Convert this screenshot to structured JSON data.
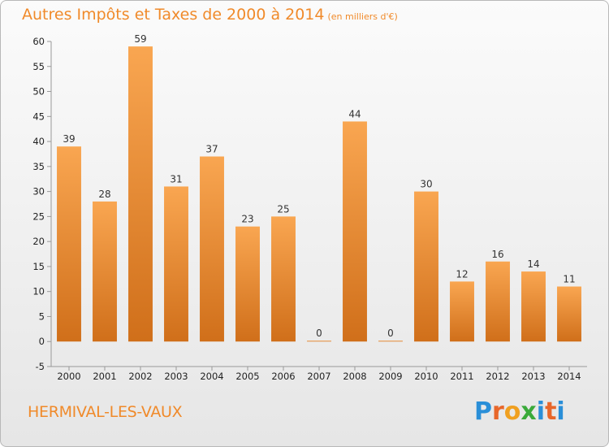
{
  "chart_title": "Autres Impôts et Taxes de 2000 à 2014",
  "chart_subtitle": "(en milliers d'€)",
  "commune": "HERMIVAL-LES-VAUX",
  "logo": {
    "text": "Proxiti",
    "colors": [
      "#2a8fd8",
      "#e8672a",
      "#f0a020",
      "#3aaa3a",
      "#2a8fd8",
      "#e8672a",
      "#2a8fd8"
    ]
  },
  "colors": {
    "accent": "#f08a2a",
    "bar_top": "#f9a651",
    "bar_bottom": "#d06f1a"
  },
  "chart_data": {
    "type": "bar",
    "title": "Autres Impôts et Taxes de 2000 à 2014",
    "subtitle": "(en milliers d'€)",
    "xlabel": "",
    "ylabel": "",
    "categories": [
      "2000",
      "2001",
      "2002",
      "2003",
      "2004",
      "2005",
      "2006",
      "2007",
      "2008",
      "2009",
      "2010",
      "2011",
      "2012",
      "2013",
      "2014"
    ],
    "values": [
      39,
      28,
      59,
      31,
      37,
      23,
      25,
      0,
      44,
      0,
      30,
      12,
      16,
      14,
      11
    ],
    "ylim": [
      -5,
      60
    ],
    "yticks": [
      -5,
      0,
      5,
      10,
      15,
      20,
      25,
      30,
      35,
      40,
      45,
      50,
      55,
      60
    ],
    "grid": false,
    "legend": "none"
  }
}
